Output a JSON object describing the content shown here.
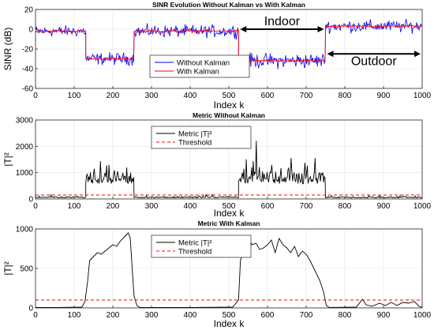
{
  "chart_data": [
    {
      "type": "line",
      "title": "SINR Evolution Without Kalman vs With Kalman",
      "xlabel": "Index k",
      "ylabel": "SINR (dB)",
      "xlim": [
        0,
        1000
      ],
      "ylim": [
        -60,
        20
      ],
      "xticks": [
        "0",
        "100",
        "200",
        "300",
        "400",
        "500",
        "600",
        "700",
        "800",
        "900",
        "1000"
      ],
      "yticks": [
        "-60",
        "-40",
        "-20",
        "0",
        "20"
      ],
      "grid": true,
      "legend_position": "bottom-center",
      "series": [
        {
          "name": "Without Kalman",
          "color": "#0000ff",
          "segments": [
            {
              "x_start": 0,
              "x_end": 130,
              "mean": -2,
              "spread": 8
            },
            {
              "x_start": 130,
              "x_end": 255,
              "mean": -30,
              "spread": 9
            },
            {
              "x_start": 255,
              "x_end": 525,
              "mean": -2,
              "spread": 9
            },
            {
              "x_start": 525,
              "x_end": 750,
              "mean": -32,
              "spread": 11
            },
            {
              "x_start": 750,
              "x_end": 1000,
              "mean": 3,
              "spread": 9
            }
          ]
        },
        {
          "name": "With Kalman",
          "color": "#ff0000",
          "segments": [
            {
              "x_start": 0,
              "x_end": 130,
              "mean": -2,
              "spread": 2
            },
            {
              "x_start": 130,
              "x_end": 255,
              "mean": -30,
              "spread": 2
            },
            {
              "x_start": 255,
              "x_end": 525,
              "mean": -2,
              "spread": 2
            },
            {
              "x_start": 525,
              "x_end": 750,
              "mean": -32,
              "spread": 2
            },
            {
              "x_start": 750,
              "x_end": 1000,
              "mean": 3,
              "spread": 2
            }
          ]
        }
      ],
      "annotations": [
        {
          "text": "Indoor",
          "x_start": 525,
          "x_end": 750,
          "y": 0
        },
        {
          "text": "Outdoor",
          "x_start": 750,
          "x_end": 1000,
          "y": -25
        }
      ]
    },
    {
      "type": "line",
      "title": "Metric Without Kalman",
      "xlabel": "Index k",
      "ylabel": "|T|²",
      "xlim": [
        0,
        1000
      ],
      "ylim": [
        0,
        3000
      ],
      "xticks": [
        "0",
        "100",
        "200",
        "300",
        "400",
        "500",
        "600",
        "700",
        "800",
        "900",
        "1000"
      ],
      "yticks": [
        "0",
        "1000",
        "2000",
        "3000"
      ],
      "grid": true,
      "legend_position": "top-center",
      "series": [
        {
          "name": "Metric |T|²",
          "color": "#000000",
          "segments": [
            {
              "x_start": 0,
              "x_end": 130,
              "mean": 60,
              "spread": 80
            },
            {
              "x_start": 130,
              "x_end": 255,
              "mean": 750,
              "spread": 700
            },
            {
              "x_start": 255,
              "x_end": 525,
              "mean": 60,
              "spread": 80
            },
            {
              "x_start": 525,
              "x_end": 750,
              "mean": 800,
              "spread": 900
            },
            {
              "x_start": 750,
              "x_end": 1000,
              "mean": 60,
              "spread": 80
            }
          ]
        },
        {
          "name": "Threshold",
          "color": "#ff0000",
          "dashed": true,
          "value": 150
        }
      ]
    },
    {
      "type": "line",
      "title": "Metric With Kalman",
      "xlabel": "Index k",
      "ylabel": "|T|²",
      "xlim": [
        0,
        1000
      ],
      "ylim": [
        0,
        1000
      ],
      "xticks": [
        "0",
        "100",
        "200",
        "300",
        "400",
        "500",
        "600",
        "700",
        "800",
        "900",
        "1000"
      ],
      "yticks": [
        "0",
        "500",
        "1000"
      ],
      "grid": true,
      "legend_position": "top-center",
      "series": [
        {
          "name": "Metric |T|²",
          "color": "#000000",
          "points": [
            [
              0,
              5
            ],
            [
              60,
              5
            ],
            [
              120,
              10
            ],
            [
              128,
              80
            ],
            [
              135,
              350
            ],
            [
              140,
              600
            ],
            [
              150,
              650
            ],
            [
              160,
              700
            ],
            [
              170,
              680
            ],
            [
              180,
              720
            ],
            [
              190,
              760
            ],
            [
              200,
              800
            ],
            [
              210,
              780
            ],
            [
              220,
              850
            ],
            [
              230,
              900
            ],
            [
              240,
              950
            ],
            [
              245,
              880
            ],
            [
              250,
              500
            ],
            [
              255,
              150
            ],
            [
              262,
              30
            ],
            [
              270,
              5
            ],
            [
              400,
              5
            ],
            [
              510,
              10
            ],
            [
              525,
              100
            ],
            [
              530,
              600
            ],
            [
              540,
              750
            ],
            [
              550,
              900
            ],
            [
              560,
              800
            ],
            [
              570,
              820
            ],
            [
              580,
              740
            ],
            [
              590,
              760
            ],
            [
              600,
              800
            ],
            [
              610,
              860
            ],
            [
              620,
              700
            ],
            [
              630,
              880
            ],
            [
              640,
              800
            ],
            [
              650,
              760
            ],
            [
              660,
              700
            ],
            [
              670,
              780
            ],
            [
              680,
              650
            ],
            [
              690,
              720
            ],
            [
              700,
              680
            ],
            [
              710,
              600
            ],
            [
              720,
              500
            ],
            [
              735,
              350
            ],
            [
              745,
              200
            ],
            [
              752,
              30
            ],
            [
              760,
              5
            ],
            [
              830,
              10
            ],
            [
              845,
              110
            ],
            [
              855,
              40
            ],
            [
              870,
              20
            ],
            [
              890,
              60
            ],
            [
              905,
              30
            ],
            [
              920,
              70
            ],
            [
              935,
              30
            ],
            [
              950,
              70
            ],
            [
              965,
              60
            ],
            [
              980,
              80
            ],
            [
              992,
              20
            ],
            [
              1000,
              5
            ]
          ]
        },
        {
          "name": "Threshold",
          "color": "#ff0000",
          "dashed": true,
          "value": 100
        }
      ]
    }
  ]
}
